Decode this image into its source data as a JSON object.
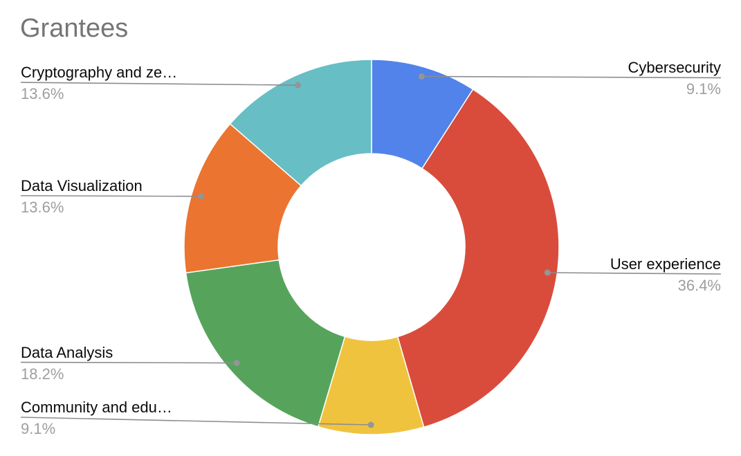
{
  "title": "Grantees",
  "chart_data": {
    "type": "pie",
    "subtype": "donut",
    "title": "Grantees",
    "start_angle_deg": 0,
    "direction": "clockwise",
    "donut_hole_ratio": 0.5,
    "legend_position": "labeled-with-leader-lines",
    "grid": false,
    "slices": [
      {
        "label": "Cybersecurity",
        "value": 9.1,
        "percent_label": "9.1%",
        "color": "#5183EA"
      },
      {
        "label": "User experience",
        "value": 36.4,
        "percent_label": "36.4%",
        "color": "#D94C3C"
      },
      {
        "label": "Community and edu…",
        "value": 9.1,
        "percent_label": "9.1%",
        "color": "#F0C33F"
      },
      {
        "label": "Data Analysis",
        "value": 18.2,
        "percent_label": "18.2%",
        "color": "#56A45C"
      },
      {
        "label": "Data Visualization",
        "value": 13.6,
        "percent_label": "13.6%",
        "color": "#EB7430"
      },
      {
        "label": "Cryptography and ze…",
        "value": 13.6,
        "percent_label": "13.6%",
        "color": "#67BEC4"
      }
    ],
    "colors": {
      "title_text": "#757575",
      "label_text": "#0a0a0a",
      "percent_text": "#9e9e9e",
      "leader_line": "#8a8d90",
      "leader_dot": "#939598",
      "slice_border": "#ffffff",
      "background": "#ffffff"
    }
  }
}
